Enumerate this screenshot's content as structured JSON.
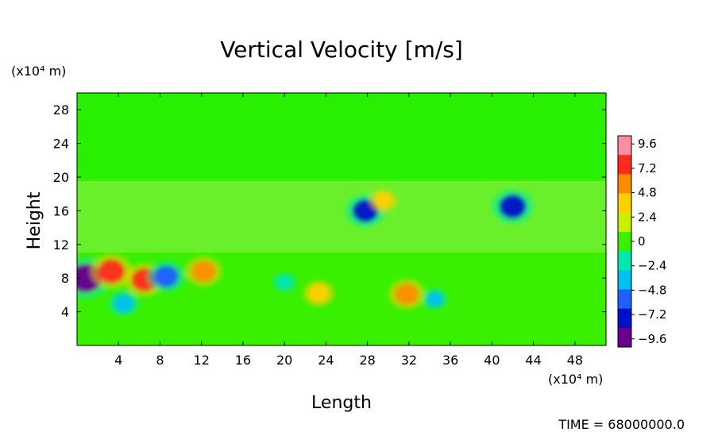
{
  "chart_data": {
    "type": "heatmap",
    "title": "Vertical Velocity [m/s]",
    "xlabel": "Length",
    "ylabel": "Height",
    "x_unit": "(x10⁴ m)",
    "y_unit": "(x10⁴ m)",
    "xlim": [
      0,
      51
    ],
    "ylim": [
      0,
      30
    ],
    "x_ticks": [
      4,
      8,
      12,
      16,
      20,
      24,
      28,
      32,
      36,
      40,
      44,
      48
    ],
    "y_ticks": [
      4,
      8,
      12,
      16,
      20,
      24,
      28
    ],
    "x_tick_labels": [
      "4",
      "8",
      "12",
      "16",
      "20",
      "24",
      "28",
      "32",
      "36",
      "40",
      "44",
      "48"
    ],
    "y_tick_labels": [
      "4",
      "8",
      "12",
      "16",
      "20",
      "24",
      "28"
    ],
    "colorbar": {
      "min": -10.4,
      "max": 10.4,
      "levels": [
        9.6,
        7.2,
        4.8,
        2.4,
        0,
        -2.4,
        -4.8,
        -7.2,
        -9.6
      ],
      "level_labels": [
        "9.6",
        "7.2",
        "4.8",
        "2.4",
        "0",
        "−2.4",
        "−4.8",
        "−7.2",
        "−9.6"
      ],
      "colors": [
        "#ff8ca0",
        "#ff2a20",
        "#ff8c00",
        "#ffd000",
        "#c8f000",
        "#38f000",
        "#00e8b0",
        "#00c0f0",
        "#2060ff",
        "#0010c8",
        "#6a008a"
      ]
    },
    "features": [
      {
        "x": 0.8,
        "y": 8.0,
        "value": -10.4
      },
      {
        "x": 3.3,
        "y": 8.8,
        "value": 8.0
      },
      {
        "x": 6.5,
        "y": 7.8,
        "value": 7.5
      },
      {
        "x": 8.6,
        "y": 8.2,
        "value": -7.0
      },
      {
        "x": 12.2,
        "y": 8.8,
        "value": 6.5
      },
      {
        "x": 23.3,
        "y": 6.2,
        "value": 5.0
      },
      {
        "x": 31.8,
        "y": 6.1,
        "value": 6.5
      },
      {
        "x": 27.8,
        "y": 16.0,
        "value": -7.5
      },
      {
        "x": 42.0,
        "y": 16.5,
        "value": -8.0
      },
      {
        "x": 29.5,
        "y": 17.2,
        "value": 4.0
      },
      {
        "x": 4.5,
        "y": 5.0,
        "value": -5.0
      },
      {
        "x": 20.0,
        "y": 7.5,
        "value": -3.0
      },
      {
        "x": 34.5,
        "y": 5.5,
        "value": -3.5
      }
    ]
  },
  "footer": {
    "time_label": "TIME = 68000000.0"
  }
}
